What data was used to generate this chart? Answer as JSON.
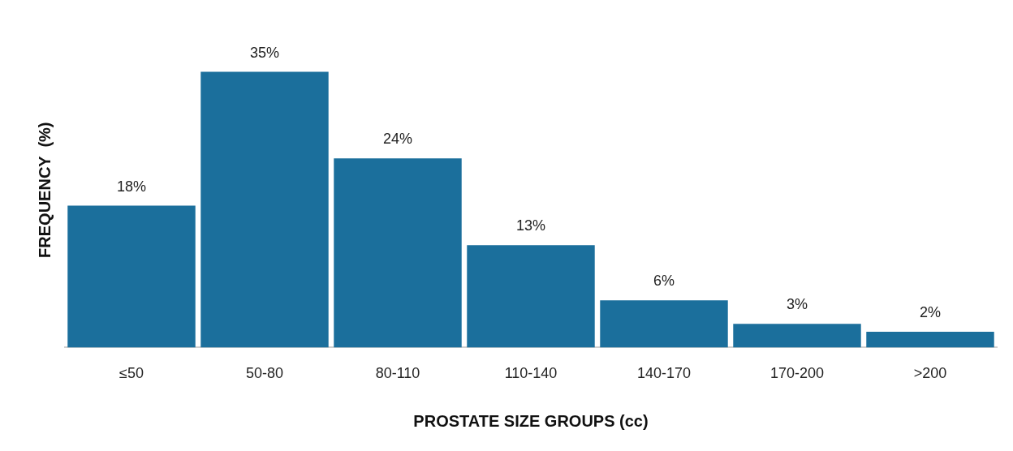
{
  "chart_data": {
    "type": "bar",
    "xlabel": "PROSTATE SIZE GROUPS (cc)",
    "ylabel": "FREQUENCY  (%)",
    "categories": [
      "≤50",
      "50-80",
      "80-110",
      "110-140",
      "140-170",
      "170-200",
      ">200"
    ],
    "values": [
      18,
      35,
      24,
      13,
      6,
      3,
      2
    ],
    "value_labels": [
      "18%",
      "35%",
      "24%",
      "13%",
      "6%",
      "3%",
      "2%"
    ],
    "color": "#1b6f9c"
  }
}
